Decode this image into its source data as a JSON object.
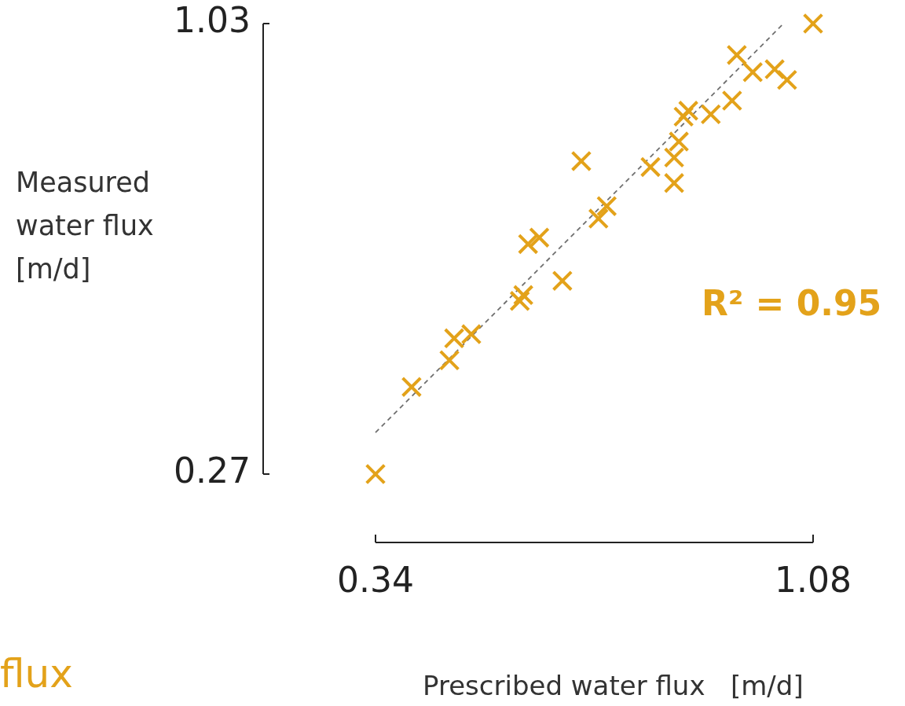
{
  "chart_data": {
    "type": "scatter",
    "xlabel": "Prescribed water flux   [m/d]",
    "ylabel": "Measured water flux [m/d]",
    "annotations": [
      "R² = 0.95",
      "flux"
    ],
    "xlim": [
      0.34,
      1.08
    ],
    "ylim": [
      0.27,
      1.03
    ],
    "xticks": [
      0.34,
      1.08
    ],
    "yticks": [
      0.27,
      1.03
    ],
    "legend": false,
    "marker": "cross",
    "series": [
      {
        "color": "#e3a21a",
        "x": [
          0.34,
          0.401,
          0.465,
          0.473,
          0.502,
          0.584,
          0.59,
          0.598,
          0.617,
          0.656,
          0.688,
          0.717,
          0.731,
          0.805,
          0.845,
          0.845,
          0.853,
          0.861,
          0.869,
          0.907,
          0.943,
          0.951,
          0.978,
          1.015,
          1.036,
          1.08
        ],
        "values": [
          0.27,
          0.417,
          0.462,
          0.499,
          0.506,
          0.562,
          0.572,
          0.658,
          0.669,
          0.596,
          0.798,
          0.701,
          0.722,
          0.788,
          0.761,
          0.804,
          0.831,
          0.873,
          0.883,
          0.877,
          0.9,
          0.977,
          0.948,
          0.953,
          0.935,
          1.03
        ]
      },
      {
        "type": "line",
        "color": "#707070",
        "line_style": "dashed",
        "marker": "none",
        "x": [
          0.34,
          1.03
        ],
        "values": [
          0.34,
          1.03
        ]
      }
    ]
  }
}
